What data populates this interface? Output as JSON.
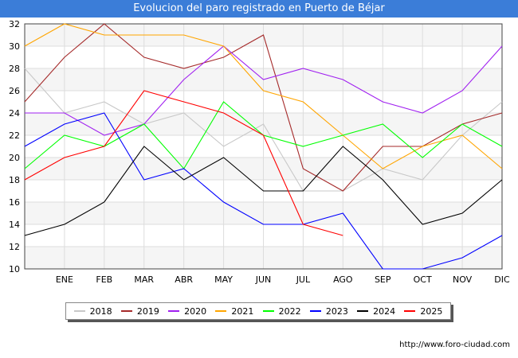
{
  "title": "Evolucion del paro registrado en Puerto de Béjar",
  "watermark": "http://www.foro-ciudad.com",
  "chart_data": {
    "type": "line",
    "x_labels": [
      "",
      "ENE",
      "FEB",
      "MAR",
      "ABR",
      "MAY",
      "JUN",
      "JUL",
      "AGO",
      "SEP",
      "OCT",
      "NOV",
      "DIC"
    ],
    "y_ticks": [
      10,
      12,
      14,
      16,
      18,
      20,
      22,
      24,
      26,
      28,
      30,
      32
    ],
    "ylim": [
      10,
      32
    ],
    "grid": true,
    "legend_position": "bottom",
    "series": [
      {
        "name": "2018",
        "color": "#c8c8c8",
        "values": [
          28,
          24,
          25,
          23,
          24,
          21,
          23,
          17,
          17,
          19,
          18,
          22,
          25
        ]
      },
      {
        "name": "2019",
        "color": "#a52a2a",
        "values": [
          25,
          29,
          32,
          29,
          28,
          29,
          31,
          19,
          17,
          21,
          21,
          23,
          24
        ]
      },
      {
        "name": "2020",
        "color": "#a020f0",
        "values": [
          24,
          24,
          22,
          23,
          27,
          30,
          27,
          28,
          27,
          25,
          24,
          26,
          30
        ]
      },
      {
        "name": "2021",
        "color": "#ffa500",
        "values": [
          30,
          32,
          31,
          31,
          31,
          30,
          26,
          25,
          22,
          19,
          21,
          22,
          19
        ]
      },
      {
        "name": "2022",
        "color": "#00ff00",
        "values": [
          19,
          22,
          21,
          23,
          19,
          25,
          22,
          21,
          22,
          23,
          20,
          23,
          21
        ]
      },
      {
        "name": "2023",
        "color": "#0000ff",
        "values": [
          21,
          23,
          24,
          18,
          19,
          16,
          14,
          14,
          15,
          10,
          10,
          11,
          13
        ]
      },
      {
        "name": "2024",
        "color": "#000000",
        "values": [
          13,
          14,
          16,
          21,
          18,
          20,
          17,
          17,
          21,
          18,
          14,
          15,
          18
        ]
      },
      {
        "name": "2025",
        "color": "#ff0000",
        "values": [
          18,
          20,
          21,
          26,
          25,
          24,
          22,
          14,
          13
        ]
      }
    ]
  }
}
